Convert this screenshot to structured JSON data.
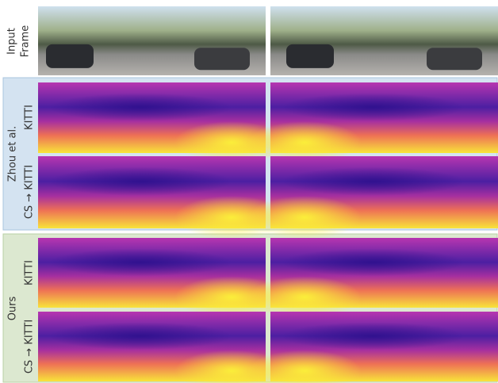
{
  "input_label": [
    "Input",
    "Frame"
  ],
  "groups": [
    {
      "label": "Zhou et al.",
      "rows": [
        "KITTI",
        "CS → KITTI"
      ]
    },
    {
      "label": "Ours",
      "rows": [
        "KITTI",
        "CS → KITTI"
      ]
    }
  ]
}
